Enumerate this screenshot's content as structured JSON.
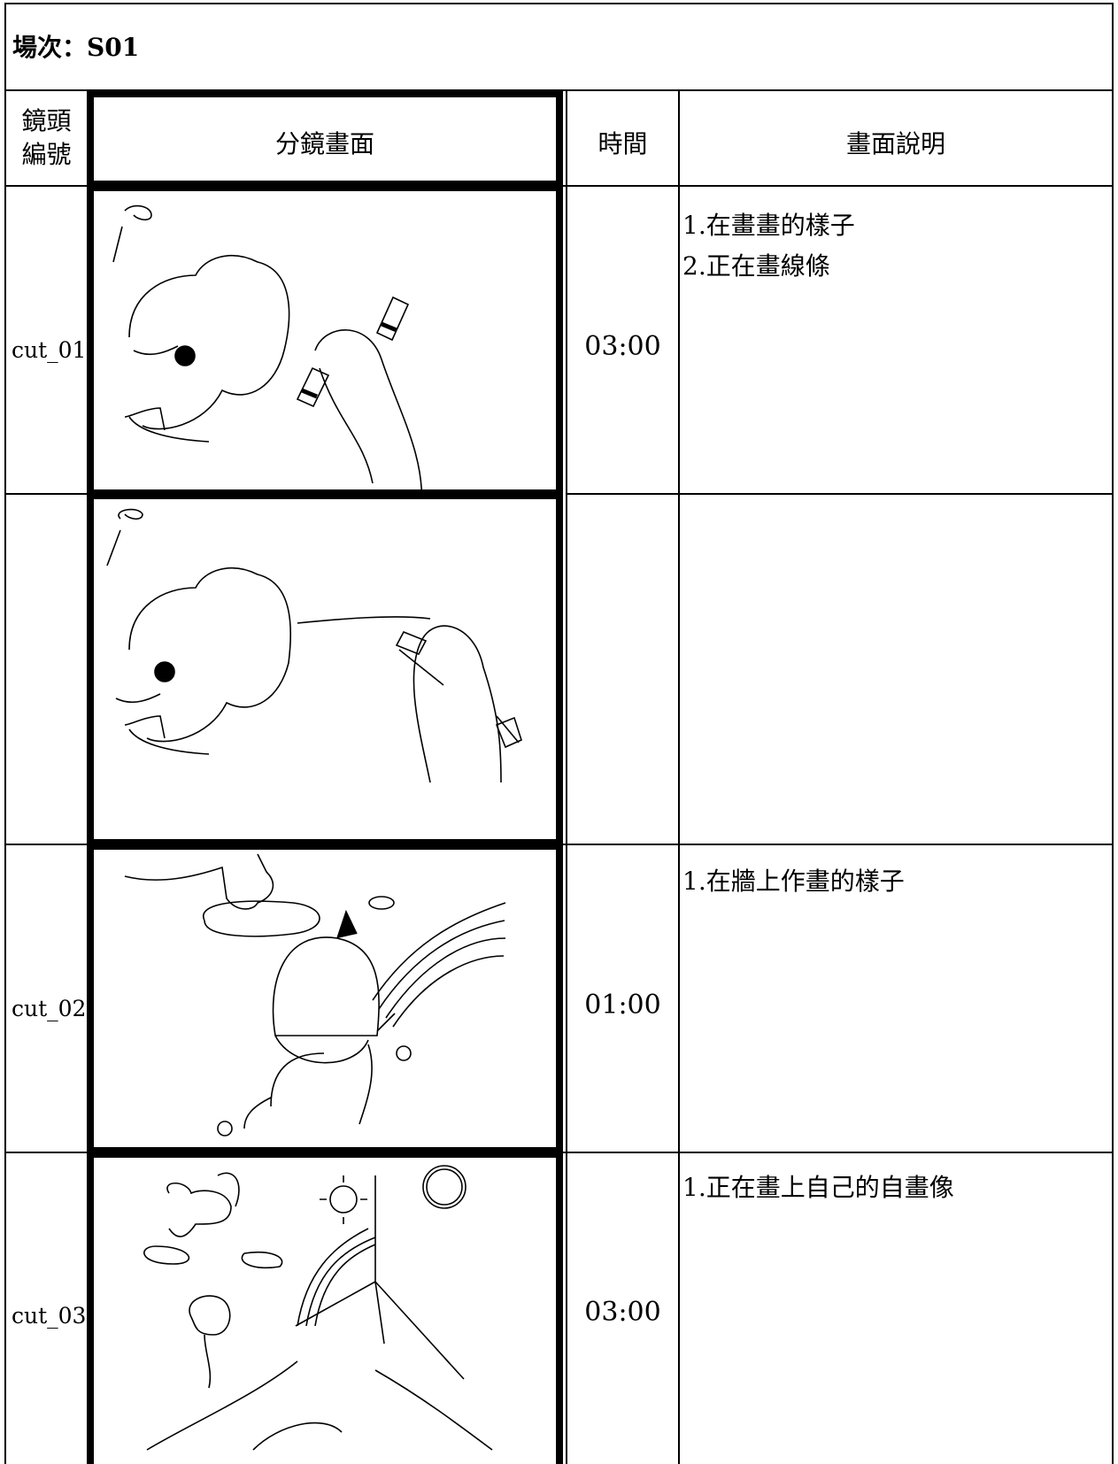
{
  "header": {
    "title": "場次：S01"
  },
  "table": {
    "columns": [
      [
        "鏡頭",
        "編號"
      ],
      "分鏡畫面",
      "時間",
      "畫面說明"
    ],
    "rows": [
      {
        "shot": "cut_01",
        "time": "03:00",
        "notes": [
          "1.在畫畫的樣子",
          "2.正在畫線條"
        ]
      },
      {
        "shot": "cut_02",
        "time": "01:00",
        "notes": [
          "1.在牆上作畫的樣子"
        ]
      },
      {
        "shot": "cut_03",
        "time": "03:00",
        "notes": [
          "1.正在畫上自己的自畫像"
        ]
      }
    ]
  }
}
